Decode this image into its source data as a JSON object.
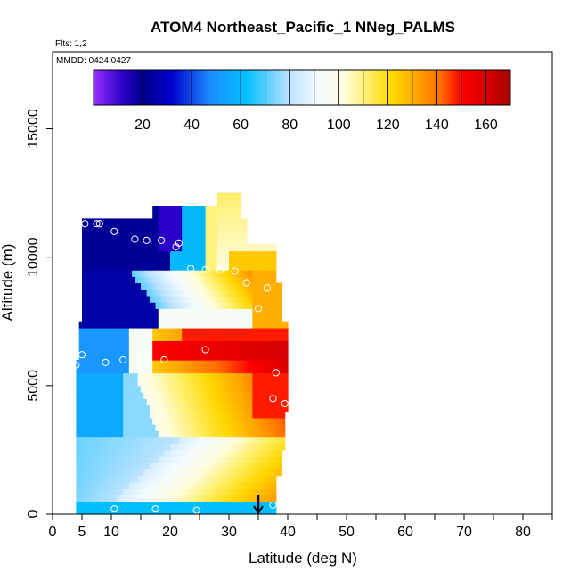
{
  "chart_data": {
    "type": "heatmap",
    "title": "ATOM4 Northeast_Pacific_1 NNeg_PALMS",
    "annotations": {
      "flights": "Flts: 1,2",
      "dates": "MMDD: 0424,0427"
    },
    "xlabel": "Latitude (deg N)",
    "ylabel": "Altitude (m)",
    "xlim": [
      0,
      85
    ],
    "ylim": [
      0,
      18000
    ],
    "x_ticks": [
      0,
      5,
      10,
      20,
      30,
      40,
      50,
      60,
      70,
      80
    ],
    "y_ticks": [
      0,
      5000,
      10000,
      15000
    ],
    "colorbar": {
      "range": [
        0,
        170
      ],
      "ticks": [
        20,
        40,
        60,
        80,
        100,
        120,
        140,
        160
      ],
      "stops": [
        {
          "v": 0,
          "c": "#9b30ff"
        },
        {
          "v": 12,
          "c": "#2a00c8"
        },
        {
          "v": 20,
          "c": "#00008b"
        },
        {
          "v": 32,
          "c": "#0000cd"
        },
        {
          "v": 48,
          "c": "#1e90ff"
        },
        {
          "v": 62,
          "c": "#00bfff"
        },
        {
          "v": 80,
          "c": "#bfe3ff"
        },
        {
          "v": 92,
          "c": "#f2fbff"
        },
        {
          "v": 102,
          "c": "#fffde0"
        },
        {
          "v": 112,
          "c": "#ffee66"
        },
        {
          "v": 122,
          "c": "#ffd700"
        },
        {
          "v": 132,
          "c": "#ffa500"
        },
        {
          "v": 142,
          "c": "#ff6a00"
        },
        {
          "v": 150,
          "c": "#ff0000"
        },
        {
          "v": 162,
          "c": "#d20000"
        },
        {
          "v": 170,
          "c": "#a00000"
        }
      ]
    },
    "arrow_latitude": 35,
    "profile": {
      "altitude_bins": [
        250,
        750,
        1250,
        1750,
        2250,
        2750,
        3250,
        3750,
        4250,
        4750,
        5250,
        5750,
        6250,
        6750,
        7250,
        7750,
        8250,
        8750,
        9250,
        9750,
        10250,
        10750,
        11250,
        11750,
        12250
      ],
      "columns": [
        {
          "lat_range": [
            4,
            38
          ],
          "alt_range": [
            0,
            500
          ]
        },
        {
          "lat_range": [
            4,
            38
          ],
          "alt_range": [
            500,
            1500
          ]
        },
        {
          "lat_range": [
            4,
            39
          ],
          "alt_range": [
            1500,
            2500
          ]
        },
        {
          "lat_range": [
            4,
            39.5
          ],
          "alt_range": [
            2500,
            4000
          ]
        },
        {
          "lat_range": [
            4,
            40
          ],
          "alt_range": [
            4000,
            6000
          ]
        },
        {
          "lat_range": [
            4.5,
            40
          ],
          "alt_range": [
            6000,
            7500
          ]
        },
        {
          "lat_range": [
            5,
            39
          ],
          "alt_range": [
            7500,
            9000
          ]
        },
        {
          "lat_range": [
            5,
            38
          ],
          "alt_range": [
            9000,
            10500
          ]
        },
        {
          "lat_range": [
            5,
            33
          ],
          "alt_range": [
            10500,
            11500
          ]
        },
        {
          "lat_range": [
            17,
            32
          ],
          "alt_range": [
            11500,
            12000
          ]
        },
        {
          "lat_range": [
            28,
            32
          ],
          "alt_range": [
            12000,
            12500
          ]
        }
      ]
    },
    "sample_points": [
      [
        5.5,
        11300
      ],
      [
        7.5,
        11300
      ],
      [
        8,
        11300
      ],
      [
        10.5,
        11000
      ],
      [
        14,
        10700
      ],
      [
        16,
        10650
      ],
      [
        18.5,
        10650
      ],
      [
        21,
        10400
      ],
      [
        21.5,
        10550
      ],
      [
        23.5,
        9550
      ],
      [
        26,
        9500
      ],
      [
        28.5,
        9500
      ],
      [
        31,
        9450
      ],
      [
        33,
        9000
      ],
      [
        36.5,
        8800
      ],
      [
        35,
        8000
      ],
      [
        4,
        5800
      ],
      [
        5,
        6200
      ],
      [
        9,
        5900
      ],
      [
        12,
        6000
      ],
      [
        16,
        6000
      ],
      [
        19,
        6000
      ],
      [
        26,
        6400
      ],
      [
        38,
        5500
      ],
      [
        37.5,
        4500
      ],
      [
        39.5,
        4300
      ],
      [
        10.5,
        200
      ],
      [
        17.5,
        200
      ],
      [
        24.5,
        150
      ],
      [
        37.5,
        350
      ]
    ]
  }
}
